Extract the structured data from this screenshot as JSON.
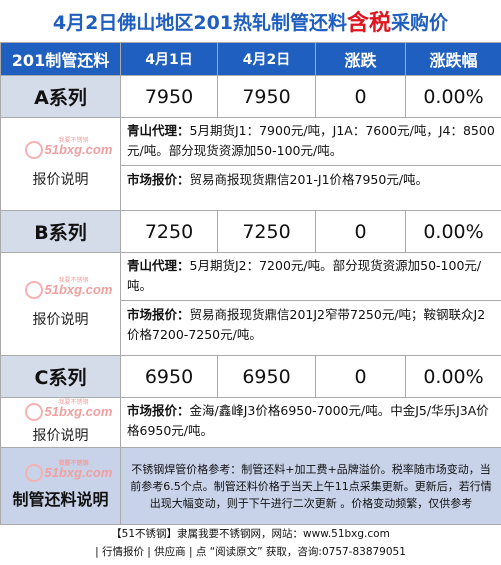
{
  "title": {
    "main": "4月2日佛山地区201热轧制管还料",
    "accent": "含税",
    "tail": "采购价"
  },
  "header": {
    "col_name": "201制管还料",
    "col_d1": "4月1日",
    "col_d2": "4月2日",
    "col_change": "涨跌",
    "col_pct": "涨跌幅"
  },
  "watermark": {
    "brand": "51bxg.com",
    "small": "我要不锈钢"
  },
  "rows": [
    {
      "name": "A系列",
      "d1": "7950",
      "d2": "7950",
      "change": "0",
      "pct": "0.00%",
      "note_label": "报价说明",
      "p1_bold": "青山代理：",
      "p1": "5月期货J1：7900元/吨，J1A：7600元/吨，J4：8500元/吨。部分现货资源加50-100元/吨。",
      "p2_bold": "市场报价：",
      "p2": "贸易商报现货鼎信201-J1价格7950元/吨。"
    },
    {
      "name": "B系列",
      "d1": "7250",
      "d2": "7250",
      "change": "0",
      "pct": "0.00%",
      "note_label": "报价说明",
      "p1_bold": "青山代理：",
      "p1": "5月期货J2：7200元/吨。部分现货资源加50-100元/吨。",
      "p2_bold": "市场报价：",
      "p2": "贸易商报现货鼎信201J2窄带7250元/吨；鞍钢联众J2价格7200-7250元/吨。"
    },
    {
      "name": "C系列",
      "d1": "6950",
      "d2": "6950",
      "change": "0",
      "pct": "0.00%",
      "note_label": "报价说明",
      "p1_bold": "市场报价：",
      "p1": "金海/鑫峰J3价格6950-7000元/吨。中金J5/华乐J3A价格6950元/吨。"
    }
  ],
  "final": {
    "label": "制管还料说明",
    "text": "不锈钢焊管价格参考：制管还料+加工费+品牌溢价。税率随市场变动，当前参考6.5个点。制管还料价格于当天上午11点采集更新。更新后，若行情出现大幅变动，则于下午进行二次更新 。价格变动频繁，仅供参考"
  },
  "footer": {
    "line1": "【51不锈钢】隶属我要不锈钢网，网站：www.51bxg.com",
    "line2": "| 行情报价 | 供应商 | 点 “阅读原文” 获取，咨询:0757-83879051"
  }
}
